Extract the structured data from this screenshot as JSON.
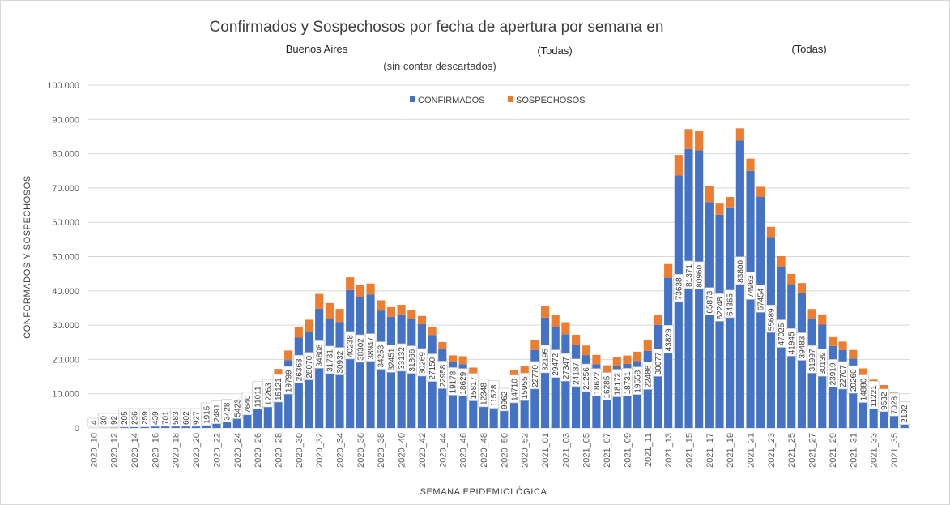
{
  "chart_data": {
    "type": "bar",
    "stacked": true,
    "title": "Confirmados y Sospechosos por fecha de apertura por semana en",
    "filters": [
      "Buenos Aires",
      "(Todas)",
      "(Todas)"
    ],
    "subtitle": "(sin contar descartados)",
    "xlabel": "SEMANA EPIDEMIOLÓGICA",
    "ylabel": "CONFORMADOS Y SOSPECHOSOS",
    "ylim": [
      0,
      100000
    ],
    "yticks": [
      0,
      10000,
      20000,
      30000,
      40000,
      50000,
      60000,
      70000,
      80000,
      90000,
      100000
    ],
    "ytick_labels": [
      "0",
      "10.000",
      "20.000",
      "30.000",
      "40.000",
      "50.000",
      "60.000",
      "70.000",
      "80.000",
      "90.000",
      "100.000"
    ],
    "grid": true,
    "legend_position": "top",
    "colors": {
      "confirmados": "#4472c4",
      "sospechosos": "#ed7d31",
      "grid": "#d9d9d9"
    },
    "categories": [
      "2020_10",
      "2020_11",
      "2020_12",
      "2020_13",
      "2020_14",
      "2020_15",
      "2020_16",
      "2020_17",
      "2020_18",
      "2020_19",
      "2020_20",
      "2020_21",
      "2020_22",
      "2020_23",
      "2020_24",
      "2020_25",
      "2020_26",
      "2020_27",
      "2020_28",
      "2020_29",
      "2020_30",
      "2020_31",
      "2020_32",
      "2020_33",
      "2020_34",
      "2020_35",
      "2020_36",
      "2020_37",
      "2020_38",
      "2020_39",
      "2020_40",
      "2020_41",
      "2020_42",
      "2020_43",
      "2020_44",
      "2020_45",
      "2020_46",
      "2020_47",
      "2020_48",
      "2020_49",
      "2020_50",
      "2020_51",
      "2020_52",
      "2020_53",
      "2021_01",
      "2021_02",
      "2021_03",
      "2021_04",
      "2021_05",
      "2021_06",
      "2021_07",
      "2021_08",
      "2021_09",
      "2021_10",
      "2021_11",
      "2021_12",
      "2021_13",
      "2021_14",
      "2021_15",
      "2021_16",
      "2021_17",
      "2021_18",
      "2021_19",
      "2021_20",
      "2021_21",
      "2021_22",
      "2021_23",
      "2021_24",
      "2021_25",
      "2021_26",
      "2021_27",
      "2021_28",
      "2021_29",
      "2021_30",
      "2021_31",
      "2021_32",
      "2021_33",
      "2021_34",
      "2021_35",
      "2021_36"
    ],
    "series": [
      {
        "name": "CONFIRMADOS",
        "values": [
          4,
          30,
          92,
          205,
          236,
          259,
          439,
          701,
          583,
          602,
          927,
          1915,
          2491,
          3428,
          5423,
          7640,
          11011,
          12263,
          15121,
          19799,
          26363,
          28070,
          34808,
          31731,
          30932,
          40238,
          38302,
          38947,
          34253,
          32451,
          33132,
          31866,
          30269,
          27150,
          22958,
          19178,
          18629,
          15817,
          12348,
          11528,
          9962,
          14710,
          15955,
          22770,
          32195,
          29472,
          27347,
          24187,
          21256,
          18622,
          16285,
          18172,
          18731,
          19558,
          22486,
          30077,
          43829,
          73638,
          81371,
          80960,
          65873,
          62248,
          64365,
          83800,
          74963,
          67454,
          55689,
          47025,
          41945,
          39483,
          31997,
          30139,
          23919,
          22707,
          20260,
          14880,
          11221,
          9532,
          7028,
          2192
        ]
      },
      {
        "name": "SOSPECHOSOS",
        "values": [
          0,
          0,
          0,
          0,
          0,
          0,
          0,
          0,
          0,
          0,
          0,
          0,
          0,
          0,
          300,
          500,
          1200,
          2000,
          2100,
          2800,
          3100,
          3500,
          4300,
          4700,
          3800,
          3700,
          3500,
          3200,
          3000,
          2800,
          2800,
          2500,
          2400,
          2200,
          2100,
          2000,
          2300,
          1800,
          1700,
          1600,
          1500,
          2300,
          2000,
          2800,
          3500,
          3400,
          3500,
          3000,
          2800,
          2700,
          2000,
          2600,
          2400,
          2700,
          3300,
          2800,
          4000,
          6000,
          5800,
          5700,
          4700,
          3200,
          3000,
          3600,
          3600,
          2900,
          3000,
          3100,
          3000,
          2800,
          2700,
          3000,
          2600,
          2500,
          2500,
          2500,
          2900,
          3000,
          3300,
          5200
        ]
      }
    ],
    "data_labels": [
      "4",
      "30",
      "92",
      "205",
      "236",
      "259",
      "439",
      "701",
      "583",
      "602",
      "927",
      "1915",
      "2491",
      "3428",
      "5423",
      "7640",
      "11011",
      "12263",
      "15121",
      "19799",
      "26363",
      "28070",
      "34808",
      "31731",
      "30932",
      "40238",
      "38302",
      "38947",
      "34253",
      "32451",
      "33132",
      "31866",
      "30269",
      "27150",
      "22958",
      "19178",
      "18629",
      "15817",
      "12348",
      "11528",
      "9962",
      "14710",
      "15955",
      "22770",
      "32195",
      "29472",
      "27347",
      "24187",
      "21256",
      "18622",
      "16285",
      "18172",
      "18731",
      "19558",
      "22486",
      "30077",
      "43829",
      "73638",
      "81371",
      "80960",
      "65873",
      "62248",
      "64365",
      "83800",
      "74963",
      "67454",
      "55689",
      "47025",
      "41945",
      "39483",
      "31997",
      "30139",
      "23919",
      "22707",
      "20260",
      "14880",
      "11221",
      "9532",
      "7028",
      "2192"
    ]
  }
}
